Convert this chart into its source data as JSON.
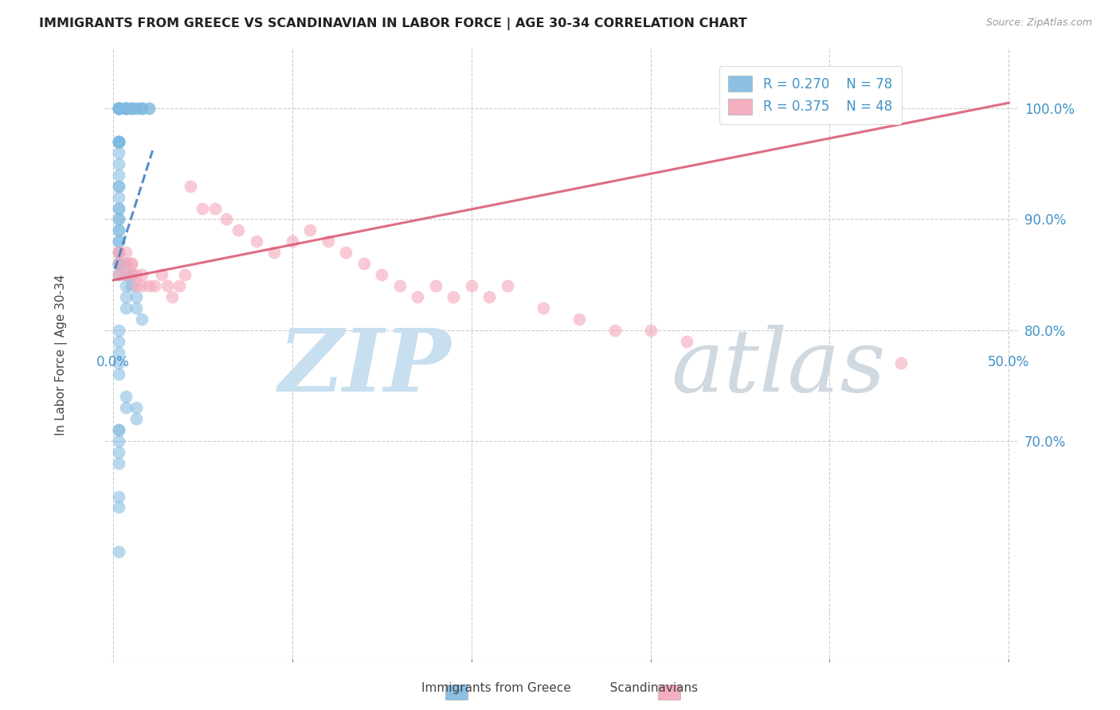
{
  "title": "IMMIGRANTS FROM GREECE VS SCANDINAVIAN IN LABOR FORCE | AGE 30-34 CORRELATION CHART",
  "source": "Source: ZipAtlas.com",
  "ylabel": "In Labor Force | Age 30-34",
  "ytick_labels": [
    "100.0%",
    "90.0%",
    "80.0%",
    "70.0%"
  ],
  "ytick_values": [
    1.0,
    0.9,
    0.8,
    0.7
  ],
  "xlim": [
    -0.005,
    0.505
  ],
  "ylim": [
    0.5,
    1.055
  ],
  "xgrid": [
    0.0,
    0.1,
    0.2,
    0.3,
    0.4,
    0.5
  ],
  "ygrid": [
    1.0,
    0.9,
    0.8,
    0.7
  ],
  "R_greece": 0.27,
  "N_greece": 78,
  "R_scand": 0.375,
  "N_scand": 48,
  "greece_color": "#7fb9e0",
  "scand_color": "#f4a7b9",
  "trend_greece_color": "#3a7bbf",
  "trend_scand_color": "#d9536e",
  "greece_x": [
    0.003,
    0.003,
    0.003,
    0.003,
    0.003,
    0.003,
    0.003,
    0.003,
    0.007,
    0.007,
    0.007,
    0.007,
    0.007,
    0.007,
    0.01,
    0.01,
    0.01,
    0.013,
    0.013,
    0.016,
    0.016,
    0.016,
    0.02,
    0.02,
    0.003,
    0.003,
    0.003,
    0.003,
    0.003,
    0.003,
    0.003,
    0.003,
    0.003,
    0.003,
    0.003,
    0.003,
    0.003,
    0.003,
    0.003,
    0.003,
    0.003,
    0.003,
    0.003,
    0.003,
    0.003,
    0.003,
    0.003,
    0.003,
    0.007,
    0.007,
    0.007,
    0.007,
    0.007,
    0.01,
    0.01,
    0.013,
    0.013,
    0.016,
    0.003,
    0.003,
    0.003,
    0.003,
    0.003,
    0.007,
    0.007,
    0.013,
    0.013,
    0.003,
    0.003,
    0.003,
    0.003,
    0.003,
    0.003,
    0.003,
    0.003
  ],
  "greece_y": [
    1.0,
    1.0,
    1.0,
    1.0,
    1.0,
    1.0,
    1.0,
    1.0,
    1.0,
    1.0,
    1.0,
    1.0,
    1.0,
    1.0,
    1.0,
    1.0,
    1.0,
    1.0,
    1.0,
    1.0,
    1.0,
    1.0,
    1.0,
    1.0,
    0.97,
    0.97,
    0.97,
    0.97,
    0.97,
    0.97,
    0.96,
    0.95,
    0.94,
    0.93,
    0.93,
    0.92,
    0.91,
    0.91,
    0.9,
    0.9,
    0.89,
    0.89,
    0.88,
    0.88,
    0.87,
    0.86,
    0.86,
    0.85,
    0.86,
    0.85,
    0.84,
    0.83,
    0.82,
    0.85,
    0.84,
    0.83,
    0.82,
    0.81,
    0.8,
    0.79,
    0.78,
    0.77,
    0.76,
    0.74,
    0.73,
    0.73,
    0.72,
    0.71,
    0.71,
    0.7,
    0.69,
    0.68,
    0.65,
    0.64,
    0.6
  ],
  "scand_x": [
    0.003,
    0.003,
    0.003,
    0.003,
    0.007,
    0.007,
    0.007,
    0.01,
    0.01,
    0.01,
    0.013,
    0.013,
    0.016,
    0.016,
    0.02,
    0.023,
    0.027,
    0.03,
    0.033,
    0.037,
    0.04,
    0.043,
    0.05,
    0.057,
    0.063,
    0.07,
    0.08,
    0.09,
    0.1,
    0.11,
    0.12,
    0.13,
    0.14,
    0.15,
    0.16,
    0.17,
    0.18,
    0.19,
    0.2,
    0.21,
    0.22,
    0.24,
    0.26,
    0.28,
    0.3,
    0.32,
    0.44
  ],
  "scand_y": [
    0.87,
    0.87,
    0.86,
    0.85,
    0.87,
    0.86,
    0.85,
    0.86,
    0.86,
    0.85,
    0.85,
    0.84,
    0.85,
    0.84,
    0.84,
    0.84,
    0.85,
    0.84,
    0.83,
    0.84,
    0.85,
    0.93,
    0.91,
    0.91,
    0.9,
    0.89,
    0.88,
    0.87,
    0.88,
    0.89,
    0.88,
    0.87,
    0.86,
    0.85,
    0.84,
    0.83,
    0.84,
    0.83,
    0.84,
    0.83,
    0.84,
    0.82,
    0.81,
    0.8,
    0.8,
    0.79,
    0.77
  ],
  "watermark_zip_color": "#c8dff0",
  "watermark_atlas_color": "#d0d8e0"
}
